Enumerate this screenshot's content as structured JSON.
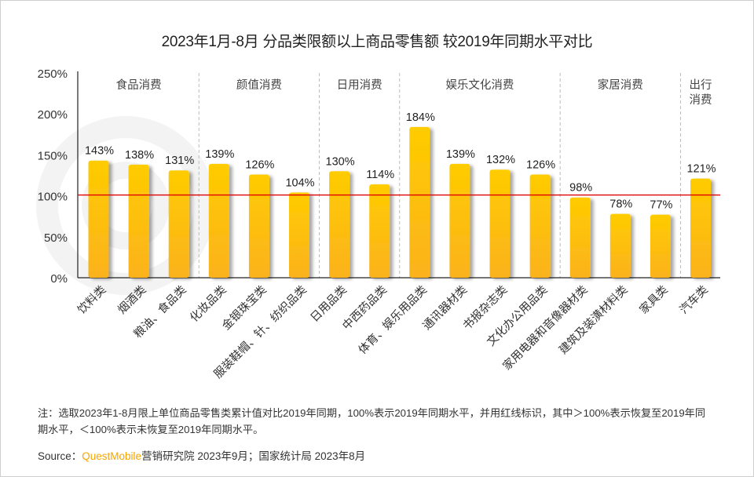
{
  "title": "2023年1月-8月 分品类限额以上商品零售额 较2019年同期水平对比",
  "chart_data": {
    "type": "bar",
    "title": "2023年1月-8月 分品类限额以上商品零售额 较2019年同期水平对比",
    "xlabel": "",
    "ylabel": "",
    "ylim": [
      0,
      250
    ],
    "yticks": [
      0,
      50,
      100,
      150,
      200,
      250
    ],
    "ytick_labels": [
      "0%",
      "50%",
      "100%",
      "150%",
      "200%",
      "250%"
    ],
    "reference_line": {
      "value": 100,
      "color": "#e00000"
    },
    "grid": false,
    "categories": [
      "饮料类",
      "烟酒类",
      "粮油、食品类",
      "化妆品类",
      "金银珠宝类",
      "服装鞋帽、针、纺织品类",
      "日用品类",
      "中西药品类",
      "体育、娱乐用品类",
      "通讯器材类",
      "书报杂志类",
      "文化办公用品类",
      "家用电器和音像器材类",
      "建筑及装潢材料类",
      "家具类",
      "汽车类"
    ],
    "values": [
      143,
      138,
      131,
      139,
      126,
      104,
      130,
      114,
      184,
      139,
      132,
      126,
      98,
      78,
      77,
      121
    ],
    "value_labels": [
      "143%",
      "138%",
      "131%",
      "139%",
      "126%",
      "104%",
      "130%",
      "114%",
      "184%",
      "139%",
      "132%",
      "126%",
      "98%",
      "78%",
      "77%",
      "121%"
    ],
    "groups": [
      {
        "label": "食品消费",
        "count": 3
      },
      {
        "label": "颜值消费",
        "count": 3
      },
      {
        "label": "日用消费",
        "count": 2
      },
      {
        "label": "娱乐文化消费",
        "count": 4
      },
      {
        "label": "家居消费",
        "count": 3
      },
      {
        "label": "出行\n消费",
        "count": 1
      }
    ],
    "bar_color_top": "#ffcc00",
    "bar_color_bottom": "#fbb21c"
  },
  "note": "注：选取2023年1-8月限上单位商品零售类累计值对比2019年同期，100%表示2019年同期水平，并用红线标识，其中＞100%表示恢复至2019年同期水平，＜100%表示未恢复至2019年同期水平。",
  "source": {
    "prefix": "Source：",
    "brand": "QuestMobile",
    "text": "营销研究院 2023年9月；国家统计局 2023年8月"
  },
  "watermark": "QUESTMOBILE"
}
